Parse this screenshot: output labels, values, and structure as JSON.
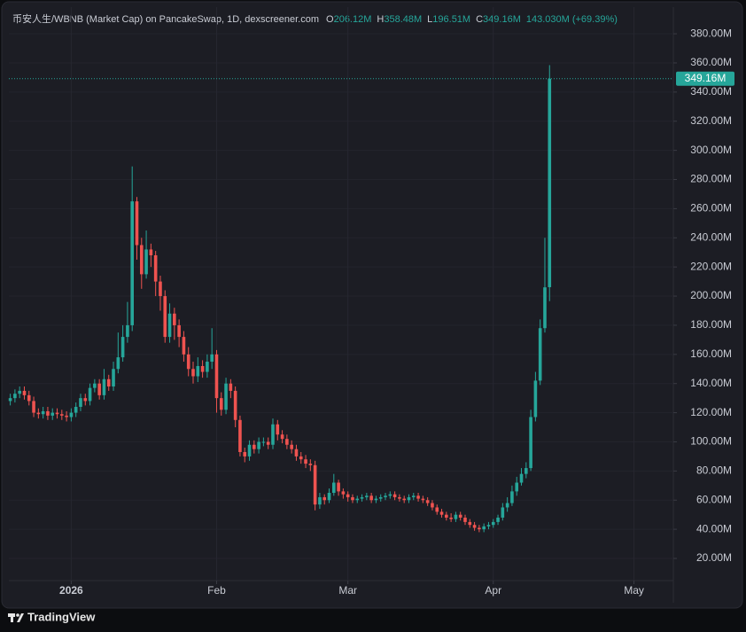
{
  "chart_data": {
    "type": "candlestick",
    "title": "币安人生/WBNB (Market Cap) on PancakeSwap, 1D, dexscreener.com",
    "ohlc_legend": [
      {
        "label": "O",
        "value": "206.12M"
      },
      {
        "label": "H",
        "value": "358.48M"
      },
      {
        "label": "L",
        "value": "196.51M"
      },
      {
        "label": "C",
        "value": "349.16M"
      }
    ],
    "change": "143.030M (+69.39%)",
    "last_price_label": "349.16M",
    "watermark": "TradingView",
    "up_color": "#26a69a",
    "down_color": "#ef5350",
    "x": [
      -13,
      -12,
      -11,
      -10,
      -9,
      -8,
      -7,
      -6,
      -5,
      -4,
      -3,
      -2,
      -1,
      0,
      1,
      2,
      3,
      4,
      5,
      6,
      7,
      8,
      9,
      10,
      11,
      12,
      13,
      14,
      15,
      16,
      17,
      18,
      19,
      20,
      21,
      22,
      23,
      24,
      25,
      26,
      27,
      28,
      29,
      30,
      31,
      32,
      33,
      34,
      35,
      36,
      37,
      38,
      39,
      40,
      41,
      42,
      43,
      44,
      45,
      46,
      47,
      48,
      49,
      50,
      51,
      52,
      53,
      54,
      55,
      56,
      57,
      58,
      59,
      60,
      61,
      62,
      63,
      64,
      65,
      66,
      67,
      68,
      69,
      70,
      71,
      72,
      73,
      74,
      75,
      76,
      77,
      78,
      79,
      80,
      81,
      82,
      83,
      84,
      85,
      86,
      87,
      88,
      89,
      90,
      91,
      92,
      93,
      94,
      95,
      96,
      97,
      98,
      99,
      100,
      101,
      102
    ],
    "open": [
      128,
      130,
      133,
      135,
      132,
      128,
      120,
      119,
      121,
      118,
      120,
      119,
      118,
      117,
      120,
      124,
      130,
      128,
      137,
      140,
      132,
      143,
      138,
      150,
      158,
      172,
      180,
      265,
      235,
      215,
      232,
      228,
      210,
      200,
      172,
      188,
      180,
      172,
      160,
      150,
      145,
      152,
      148,
      155,
      160,
      130,
      122,
      140,
      135,
      115,
      93,
      90,
      98,
      95,
      100,
      100,
      98,
      112,
      105,
      102,
      98,
      95,
      90,
      88,
      85,
      84,
      57,
      62,
      60,
      65,
      72,
      66,
      64,
      62,
      60,
      61,
      62,
      63,
      60,
      61,
      62,
      63,
      64,
      62,
      61,
      60,
      62,
      63,
      61,
      60,
      58,
      55,
      52,
      50,
      48,
      47,
      50,
      48,
      45,
      43,
      41,
      40,
      42,
      43,
      45,
      48,
      55,
      58,
      66,
      72,
      78,
      82,
      117,
      142,
      178,
      206.12
    ],
    "high": [
      133,
      136,
      138,
      138,
      135,
      131,
      123,
      124,
      124,
      123,
      123,
      122,
      121,
      123,
      127,
      133,
      133,
      140,
      143,
      143,
      150,
      146,
      155,
      175,
      180,
      196,
      289,
      268,
      240,
      245,
      236,
      231,
      214,
      204,
      195,
      192,
      184,
      176,
      165,
      155,
      158,
      156,
      160,
      178,
      163,
      134,
      144,
      143,
      138,
      118,
      96,
      101,
      101,
      103,
      103,
      103,
      116,
      115,
      108,
      105,
      101,
      98,
      93,
      91,
      88,
      87,
      65,
      64,
      68,
      78,
      74,
      68,
      66,
      64,
      63,
      64,
      65,
      65,
      63,
      64,
      65,
      66,
      66,
      64,
      63,
      64,
      65,
      65,
      63,
      62,
      60,
      57,
      54,
      52,
      51,
      52,
      52,
      50,
      47,
      45,
      43,
      44,
      45,
      47,
      50,
      58,
      62,
      70,
      76,
      82,
      86,
      122,
      148,
      184,
      240,
      358.48
    ],
    "low": [
      125,
      127,
      130,
      129,
      125,
      117,
      116,
      116,
      115,
      115,
      116,
      115,
      114,
      114,
      117,
      121,
      125,
      125,
      134,
      129,
      129,
      135,
      135,
      147,
      155,
      168,
      176,
      225,
      205,
      212,
      220,
      200,
      190,
      168,
      168,
      170,
      165,
      155,
      145,
      140,
      141,
      144,
      144,
      150,
      120,
      118,
      119,
      130,
      110,
      90,
      86,
      87,
      92,
      92,
      97,
      95,
      95,
      101,
      99,
      95,
      92,
      87,
      85,
      82,
      80,
      53,
      54,
      57,
      58,
      63,
      63,
      61,
      59,
      58,
      58,
      59,
      60,
      58,
      58,
      59,
      60,
      61,
      60,
      59,
      58,
      58,
      60,
      59,
      58,
      56,
      53,
      50,
      48,
      46,
      45,
      45,
      46,
      43,
      41,
      39,
      38,
      38,
      40,
      41,
      43,
      46,
      52,
      56,
      63,
      70,
      75,
      80,
      114,
      139,
      175,
      196.51
    ],
    "close": [
      130,
      133,
      135,
      132,
      128,
      120,
      119,
      121,
      118,
      120,
      119,
      118,
      117,
      120,
      124,
      130,
      128,
      137,
      140,
      132,
      143,
      138,
      150,
      158,
      172,
      180,
      265,
      235,
      215,
      232,
      228,
      210,
      200,
      172,
      188,
      180,
      172,
      160,
      150,
      145,
      152,
      148,
      155,
      160,
      130,
      122,
      140,
      135,
      115,
      93,
      90,
      98,
      95,
      100,
      100,
      98,
      112,
      105,
      102,
      98,
      95,
      90,
      88,
      85,
      84,
      57,
      62,
      60,
      65,
      72,
      66,
      64,
      62,
      60,
      61,
      62,
      63,
      60,
      61,
      62,
      63,
      64,
      62,
      61,
      60,
      62,
      63,
      61,
      60,
      58,
      55,
      52,
      50,
      48,
      47,
      50,
      48,
      45,
      43,
      41,
      40,
      42,
      43,
      45,
      48,
      55,
      58,
      66,
      72,
      78,
      82,
      117,
      142,
      178,
      206,
      349.16
    ],
    "xlim": [
      -13.3,
      128.4
    ],
    "xticks": [
      {
        "value": 0,
        "label": "2026"
      },
      {
        "value": 31,
        "label": "Feb"
      },
      {
        "value": 59,
        "label": "Mar"
      },
      {
        "value": 90,
        "label": "Apr"
      },
      {
        "value": 120,
        "label": "May"
      }
    ],
    "ylim": [
      4.8,
      398.3
    ],
    "yticks": [
      {
        "value": 20,
        "label": "20.00M"
      },
      {
        "value": 40,
        "label": "40.00M"
      },
      {
        "value": 60,
        "label": "60.00M"
      },
      {
        "value": 80,
        "label": "80.00M"
      },
      {
        "value": 100,
        "label": "100.00M"
      },
      {
        "value": 120,
        "label": "120.00M"
      },
      {
        "value": 140,
        "label": "140.00M"
      },
      {
        "value": 160,
        "label": "160.00M"
      },
      {
        "value": 180,
        "label": "180.00M"
      },
      {
        "value": 200,
        "label": "200.00M"
      },
      {
        "value": 220,
        "label": "220.00M"
      },
      {
        "value": 240,
        "label": "240.00M"
      },
      {
        "value": 260,
        "label": "260.00M"
      },
      {
        "value": 280,
        "label": "280.00M"
      },
      {
        "value": 300,
        "label": "300.00M"
      },
      {
        "value": 320,
        "label": "320.00M"
      },
      {
        "value": 340,
        "label": "340.00M"
      },
      {
        "value": 360,
        "label": "360.00M"
      },
      {
        "value": 380,
        "label": "380.00M"
      }
    ],
    "grid": true
  }
}
